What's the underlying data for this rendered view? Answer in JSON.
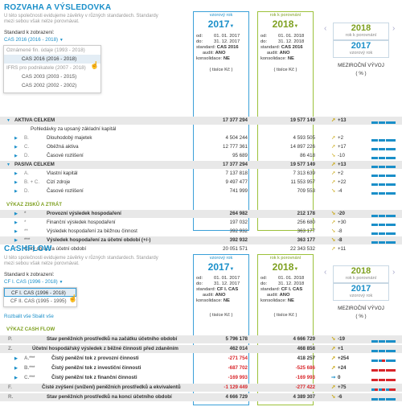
{
  "balance": {
    "title": "ROZVAHA A VÝSLEDOVKA",
    "intro_line1": "U této společnosti evidujeme závěrky v různých standardech. Standardy",
    "intro_line2": "mezi sebou však nelze porovnávat.",
    "standard_label": "Standard k zobrazení:",
    "standard_selected": "CAS 2016 (2016 - 2018)",
    "dropdown": {
      "group1": "Oznámené fin. údaje (1993 - 2018)",
      "item1": "CAS 2016 (2016 - 2018)",
      "group2": "IFRS pro podnikatele (2007 - 2018)",
      "item2": "CAS 2003 (2003 - 2015)",
      "item3": "CAS 2002 (2002 - 2002)"
    },
    "col1": {
      "caption": "vzorový rok",
      "year": "2017",
      "od": "01. 01. 2017",
      "do": "31. 12. 2017",
      "standard": "CAS 2016",
      "audit": "ANO",
      "konsolidace": "NE",
      "units": "( tisíce Kč )"
    },
    "col2": {
      "caption": "rok k porovnání",
      "year": "2018",
      "od": "01. 01. 2018",
      "do": "31. 12. 2018",
      "standard": "CAS 2016",
      "audit": "ANO",
      "konsolidace": "NE",
      "units": "( tisíce Kč )"
    },
    "compare": {
      "year_top": "2018",
      "caption_top": "rok k porovnání",
      "year_bottom": "2017",
      "caption_bottom": "vzorový rok",
      "mv_title": "MEZIROČNÍ VÝVOJ",
      "mv_units": "( % )"
    },
    "labels": {
      "od": "od:",
      "do": "do:",
      "standard": "standard:",
      "audit": "audit:",
      "konsolidace": "konsolidace:"
    },
    "rows": [
      {
        "code": "",
        "name": "AKTIVA CELKEM",
        "v1": "17 377 294",
        "v2": "19 577 149",
        "pct": "+13"
      },
      {
        "code": "",
        "name": "Pohledávky za upsaný základní kapitál",
        "v1": "",
        "v2": "",
        "pct": ""
      },
      {
        "code": "B.",
        "name": "Dlouhodobý majetek",
        "v1": "4 504 244",
        "v2": "4 593 505",
        "pct": "+2"
      },
      {
        "code": "C.",
        "name": "Oběžná aktiva",
        "v1": "12 777 361",
        "v2": "14 897 226",
        "pct": "+17"
      },
      {
        "code": "D.",
        "name": "Časové rozlišení",
        "v1": "95 689",
        "v2": "86 418",
        "pct": "-10"
      },
      {
        "code": "",
        "name": "PASIVA CELKEM",
        "v1": "17 377 294",
        "v2": "19 577 149",
        "pct": "+13"
      },
      {
        "code": "A.",
        "name": "Vlastní kapitál",
        "v1": "7 137 818",
        "v2": "7 313 639",
        "pct": "+2"
      },
      {
        "code": "B. + C.",
        "name": "Cizí zdroje",
        "v1": "9 497 477",
        "v2": "11 553 957",
        "pct": "+22"
      },
      {
        "code": "D.",
        "name": "Časové rozlišení",
        "v1": "741 999",
        "v2": "709 553",
        "pct": "-4"
      }
    ],
    "vzz_header": "VÝKAZ ZISKŮ A ZTRÁT",
    "vzz_rows": [
      {
        "code": "*",
        "name": "Provozní výsledek hospodaření",
        "v1": "264 982",
        "v2": "212 178",
        "pct": "-20"
      },
      {
        "code": "*",
        "name": "Finanční výsledek hospodaření",
        "v1": "197 032",
        "v2": "256 680",
        "pct": "+30"
      },
      {
        "code": "**",
        "name": "Výsledek hospodaření za běžnou činnost",
        "v1": "392 932",
        "v2": "363 177",
        "pct": "-8"
      },
      {
        "code": "***",
        "name": "Výsledek hospodaření za účetní období (+/-)",
        "v1": "392 932",
        "v2": "363 177",
        "pct": "-8"
      },
      {
        "code": "*",
        "name": "Čistý obrat za účetní období",
        "v1": "20 051 571",
        "v2": "22 343 532",
        "pct": "+11"
      }
    ]
  },
  "cashflow": {
    "title": "CASHFLOW",
    "intro_line1": "U této společnosti evidujeme závěrky v různých standardech. Standardy",
    "intro_line2": "mezi sebou však nelze porovnávat.",
    "standard_label": "Standard k zobrazení:",
    "standard_selected": "CF I. CAS (1996 - 2018)",
    "dropdown": {
      "item1": "CF I. CAS (1996 - 2018)",
      "item2": "CF II. CAS (1995 - 1995)"
    },
    "expand": "Rozbalit vše",
    "collapse": "Sbalit vše",
    "col1": {
      "caption": "vzorový rok",
      "year": "2017",
      "od": "01. 01. 2017",
      "do": "31. 12. 2017",
      "standard": "CF I. CAS",
      "audit": "ANO",
      "konsolidace": "NE",
      "units": "( tisíce Kč )"
    },
    "col2": {
      "caption": "rok k porovnání",
      "year": "2018",
      "od": "01. 01. 2018",
      "do": "31. 12. 2018",
      "standard": "CF I. CAS",
      "audit": "ANO",
      "konsolidace": "NE",
      "units": "( tisíce Kč )"
    },
    "compare": {
      "year_top": "2018",
      "caption_top": "rok k porovnání",
      "year_bottom": "2017",
      "caption_bottom": "vzorový rok",
      "mv_title": "MEZIROČNÍ VÝVOJ",
      "mv_units": "( % )"
    },
    "header": "VÝKAZ CASH FLOW",
    "rows": [
      {
        "code": "P.",
        "name": "Stav peněžních prostředků na začátku účetního období",
        "v1": "5 796 178",
        "v2": "4 666 729",
        "pct": "-19"
      },
      {
        "code": "Z.",
        "name": "Účetní hospodářský výsledek z běžné činnosti před zdaněním",
        "v1": "462 014",
        "v2": "468 858",
        "pct": "+1"
      },
      {
        "code": "A.***",
        "name": "Čistý peněžní tok z provozní činnosti",
        "v1": "-271 754",
        "v2": "418 257",
        "pct": "+254"
      },
      {
        "code": "B.***",
        "name": "Čistý peněžní tok z investiční činnosti",
        "v1": "-687 702",
        "v2": "-525 686",
        "pct": "+24"
      },
      {
        "code": "C.***",
        "name": "Čistý peněžní tok z finanční činnosti",
        "v1": "-169 993",
        "v2": "-169 993",
        "pct": "0"
      },
      {
        "code": "F.",
        "name": "Čisté zvýšení (snížení) peněžních prostředků a ekvivalentů",
        "v1": "-1 129 449",
        "v2": "-277 422",
        "pct": "+75"
      },
      {
        "code": "R.",
        "name": "Stav peněžních prostředků na konci účetního období",
        "v1": "4 666 729",
        "v2": "4 389 307",
        "pct": "-6"
      }
    ]
  }
}
